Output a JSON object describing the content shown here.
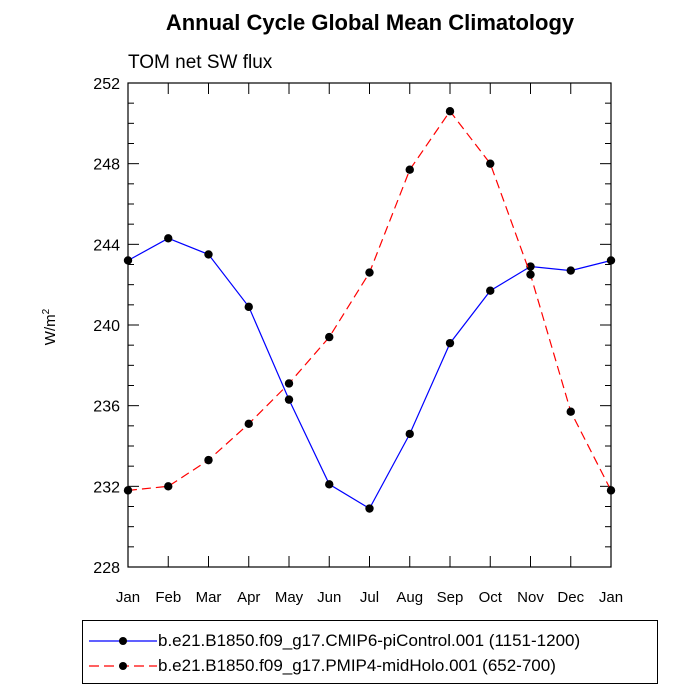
{
  "chart_data": {
    "type": "line",
    "title": "Annual Cycle Global Mean Climatology",
    "subtitle": "TOM net SW flux",
    "ylabel": "W/m",
    "ylabel_sup": "2",
    "xlabel": "",
    "categories": [
      "Jan",
      "Feb",
      "Mar",
      "Apr",
      "May",
      "Jun",
      "Jul",
      "Aug",
      "Sep",
      "Oct",
      "Nov",
      "Dec",
      "Jan"
    ],
    "ylim": [
      228,
      252
    ],
    "yticks": [
      228,
      232,
      236,
      240,
      244,
      248,
      252
    ],
    "ytick_labels": [
      "228",
      "232",
      "236",
      "240",
      "244",
      "248",
      "252"
    ],
    "series": [
      {
        "name": "b.e21.B1850.f09_g17.CMIP6-piControl.001 (1151-1200)",
        "color": "#0000ff",
        "dash": "solid",
        "values": [
          243.2,
          244.3,
          243.5,
          240.9,
          236.3,
          232.1,
          230.9,
          234.6,
          239.1,
          241.7,
          242.9,
          242.7,
          243.2
        ]
      },
      {
        "name": "b.e21.B1850.f09_g17.PMIP4-midHolo.001 (652-700)",
        "color": "#ff0000",
        "dash": "dashed",
        "values": [
          231.8,
          232.0,
          233.3,
          235.1,
          237.1,
          239.4,
          242.6,
          247.7,
          250.6,
          248.0,
          242.5,
          235.7,
          231.8
        ]
      }
    ],
    "legend_position": "bottom"
  }
}
